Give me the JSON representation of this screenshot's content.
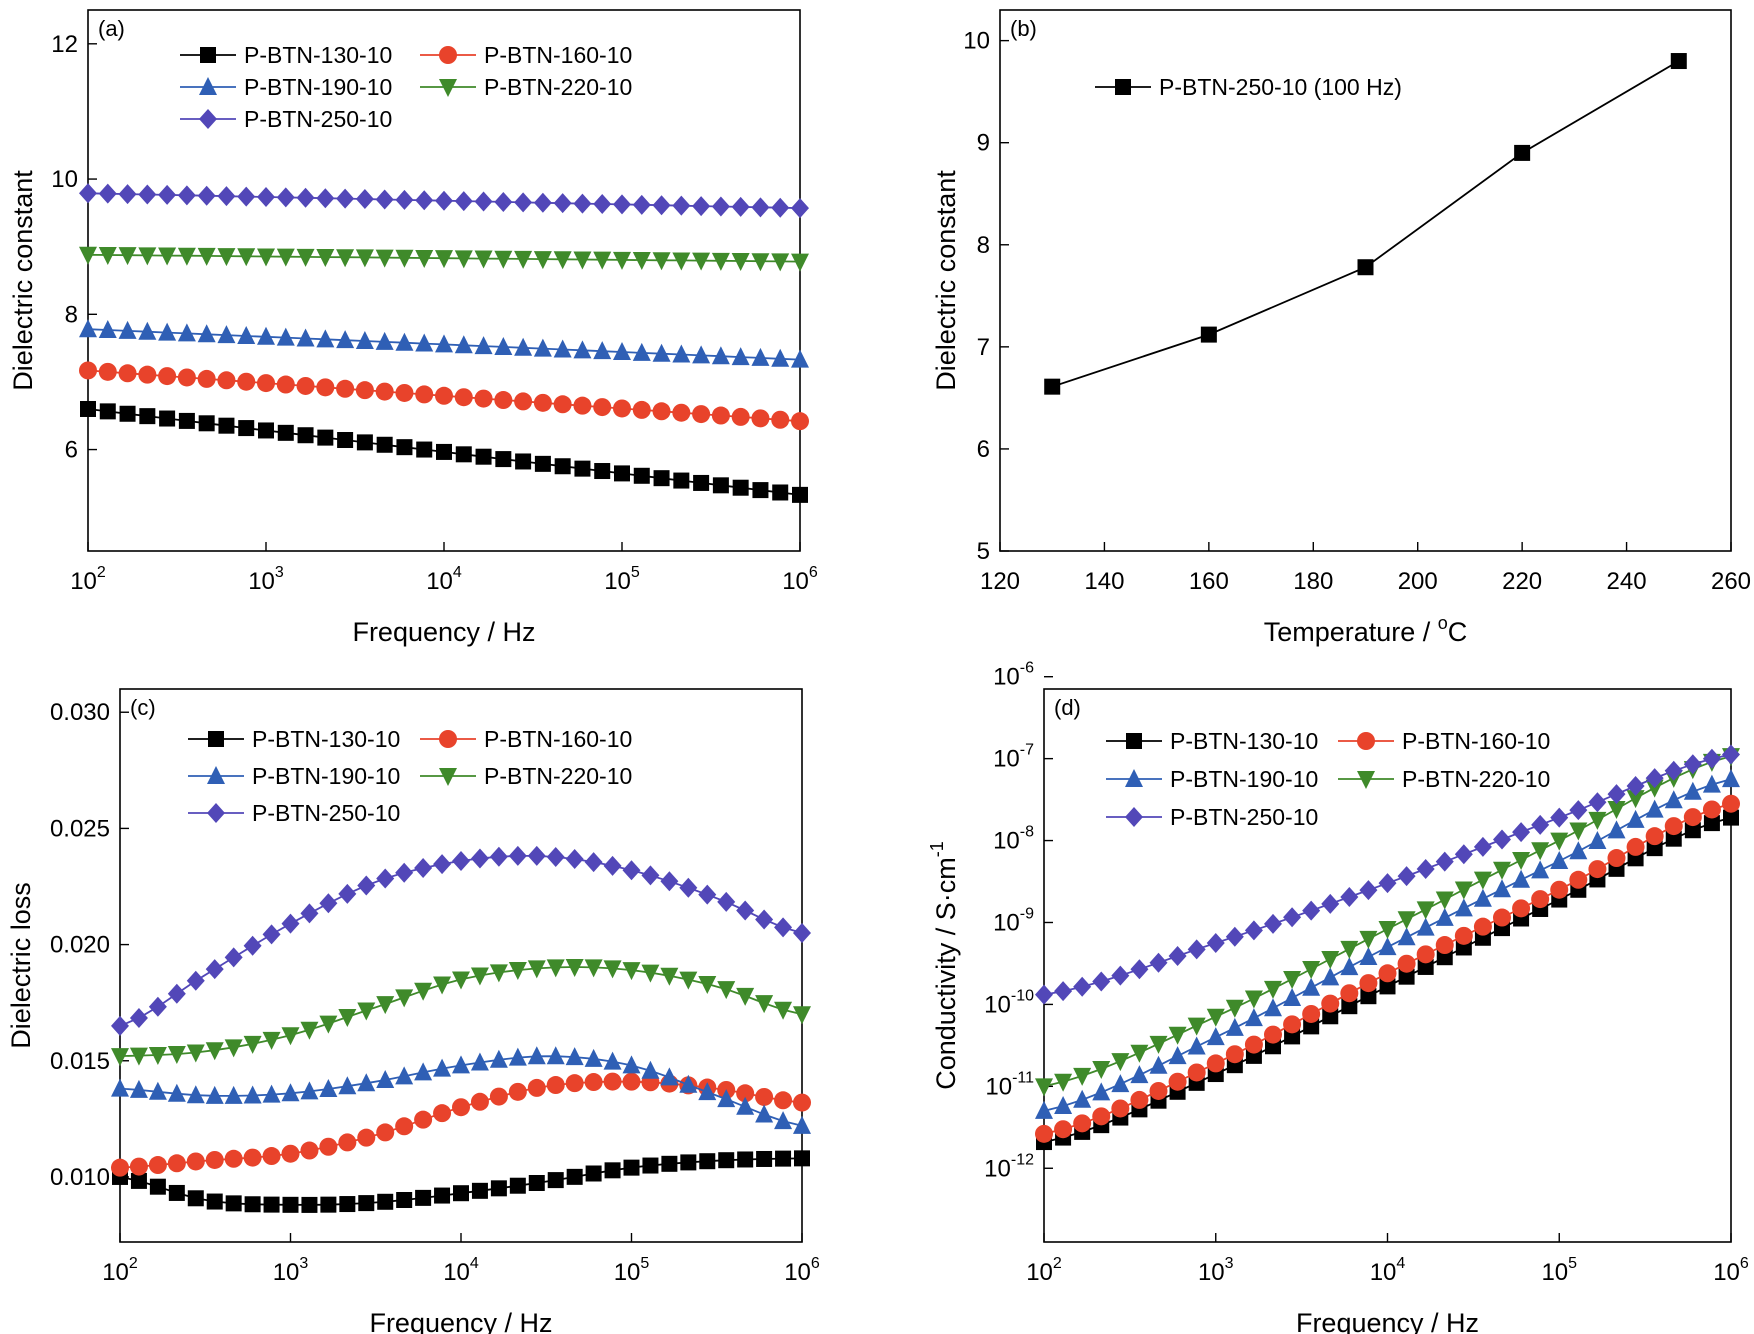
{
  "colors": {
    "black": "#000000",
    "red": "#e8432b",
    "blue": "#2f5fb5",
    "green": "#3f8a2a",
    "purple": "#5247b8"
  },
  "chart_data": [
    {
      "id": "a",
      "type": "line",
      "panel_label": "(a)",
      "xlabel": "Frequency / Hz",
      "ylabel": "Dielectric constant",
      "xscale": "log",
      "xlim": [
        100,
        1000000
      ],
      "ylim": [
        4.5,
        12.5
      ],
      "xticks": [
        {
          "base": "10",
          "exp": "2"
        },
        {
          "base": "10",
          "exp": "3"
        },
        {
          "base": "10",
          "exp": "4"
        },
        {
          "base": "10",
          "exp": "5"
        },
        {
          "base": "10",
          "exp": "6"
        }
      ],
      "yticks": [
        "6",
        "8",
        "10",
        "12"
      ],
      "legend_position": "top-left",
      "legend_columns": 2,
      "series": [
        {
          "name": "P-BTN-130-10",
          "color": "#000000",
          "marker": "square",
          "label_color": "#000000",
          "start": 6.6,
          "end": 5.33,
          "curve": "linear"
        },
        {
          "name": "P-BTN-160-10",
          "color": "#e8432b",
          "marker": "circle",
          "label_color": "#000000",
          "start": 7.17,
          "end": 6.42,
          "curve": "linear"
        },
        {
          "name": "P-BTN-190-10",
          "color": "#2f5fb5",
          "marker": "triangle-up",
          "label_color": "#000000",
          "start": 7.78,
          "end": 7.33,
          "curve": "linear"
        },
        {
          "name": "P-BTN-220-10",
          "color": "#3f8a2a",
          "marker": "triangle-down",
          "label_color": "#000000",
          "start": 8.88,
          "end": 8.78,
          "curve": "linear"
        },
        {
          "name": "P-BTN-250-10",
          "color": "#5247b8",
          "marker": "diamond",
          "label_color": "#000000",
          "start": 9.79,
          "end": 9.57,
          "curve": "linear"
        }
      ]
    },
    {
      "id": "b",
      "type": "line",
      "panel_label": "(b)",
      "xlabel": "Temperature / °C",
      "xlabel_parts": [
        "Temperature / ",
        "o",
        "C"
      ],
      "ylabel": "Dielectric constant",
      "xscale": "linear",
      "xlim": [
        120,
        260
      ],
      "ylim": [
        5,
        10.3
      ],
      "xticks": [
        "120",
        "140",
        "160",
        "180",
        "200",
        "220",
        "240",
        "260"
      ],
      "yticks": [
        "5",
        "6",
        "7",
        "8",
        "9",
        "10"
      ],
      "legend_position": "top-left",
      "series": [
        {
          "name": "P-BTN-250-10 (100 Hz)",
          "color": "#000000",
          "marker": "square",
          "x": [
            130,
            160,
            190,
            220,
            250
          ],
          "y": [
            6.61,
            7.12,
            7.78,
            8.9,
            9.8
          ]
        }
      ]
    },
    {
      "id": "c",
      "type": "line",
      "panel_label": "(c)",
      "xlabel": "Frequency / Hz",
      "ylabel": "Dielectric loss",
      "xscale": "log",
      "xlim": [
        100,
        1000000
      ],
      "ylim": [
        0.0072,
        0.031
      ],
      "xticks": [
        {
          "base": "10",
          "exp": "2"
        },
        {
          "base": "10",
          "exp": "3"
        },
        {
          "base": "10",
          "exp": "4"
        },
        {
          "base": "10",
          "exp": "5"
        },
        {
          "base": "10",
          "exp": "6"
        }
      ],
      "yticks": [
        "0.010",
        "0.015",
        "0.020",
        "0.025",
        "0.030"
      ],
      "legend_position": "top-left",
      "legend_columns": 2,
      "series": [
        {
          "name": "P-BTN-130-10",
          "color": "#000000",
          "marker": "square",
          "label_color": "#000000",
          "points": [
            [
              2,
              0.01
            ],
            [
              2.5,
              0.009
            ],
            [
              3,
              0.0088
            ],
            [
              3.5,
              0.0089
            ],
            [
              4,
              0.0093
            ],
            [
              4.5,
              0.0098
            ],
            [
              5,
              0.0104
            ],
            [
              5.5,
              0.0107
            ],
            [
              6,
              0.0108
            ]
          ]
        },
        {
          "name": "P-BTN-160-10",
          "color": "#e8432b",
          "marker": "circle",
          "label_color": "#e8432b",
          "points": [
            [
              2,
              0.0104
            ],
            [
              2.5,
              0.0107
            ],
            [
              3,
              0.011
            ],
            [
              3.5,
              0.0118
            ],
            [
              4,
              0.013
            ],
            [
              4.5,
              0.0139
            ],
            [
              5,
              0.0141
            ],
            [
              5.5,
              0.0138
            ],
            [
              6,
              0.0132
            ]
          ]
        },
        {
          "name": "P-BTN-190-10",
          "color": "#2f5fb5",
          "marker": "triangle-up",
          "label_color": "#2f5fb5",
          "points": [
            [
              2,
              0.0138
            ],
            [
              2.5,
              0.0135
            ],
            [
              3,
              0.0136
            ],
            [
              3.5,
              0.0141
            ],
            [
              4,
              0.0148
            ],
            [
              4.5,
              0.0152
            ],
            [
              5,
              0.0148
            ],
            [
              5.5,
              0.0135
            ],
            [
              6,
              0.0122
            ]
          ]
        },
        {
          "name": "P-BTN-220-10",
          "color": "#3f8a2a",
          "marker": "triangle-down",
          "label_color": "#3f8a2a",
          "points": [
            [
              2,
              0.0152
            ],
            [
              2.5,
              0.0154
            ],
            [
              3,
              0.0161
            ],
            [
              3.5,
              0.0173
            ],
            [
              4,
              0.0185
            ],
            [
              4.5,
              0.019
            ],
            [
              5,
              0.0189
            ],
            [
              5.5,
              0.0182
            ],
            [
              6,
              0.017
            ]
          ]
        },
        {
          "name": "P-BTN-250-10",
          "color": "#5247b8",
          "marker": "diamond",
          "label_color": "#5247b8",
          "points": [
            [
              2,
              0.0165
            ],
            [
              2.5,
              0.0187
            ],
            [
              3,
              0.0209
            ],
            [
              3.5,
              0.0227
            ],
            [
              4,
              0.0236
            ],
            [
              4.5,
              0.0238
            ],
            [
              5,
              0.0232
            ],
            [
              5.5,
              0.022
            ],
            [
              6,
              0.0205
            ]
          ]
        }
      ]
    },
    {
      "id": "d",
      "type": "line",
      "panel_label": "(d)",
      "xlabel": "Frequency / Hz",
      "ylabel_parts": [
        "Conductivity / S·cm",
        "-1"
      ],
      "ylabel": "Conductivity / S·cm-1",
      "xscale": "log",
      "yscale": "log",
      "xlim": [
        100,
        1000000
      ],
      "ylim_exp": [
        -12.9,
        -6.15
      ],
      "xticks": [
        {
          "base": "10",
          "exp": "2"
        },
        {
          "base": "10",
          "exp": "3"
        },
        {
          "base": "10",
          "exp": "4"
        },
        {
          "base": "10",
          "exp": "5"
        },
        {
          "base": "10",
          "exp": "6"
        }
      ],
      "yticks": [
        {
          "base": "10",
          "exp": "-12"
        },
        {
          "base": "10",
          "exp": "-11"
        },
        {
          "base": "10",
          "exp": "-10"
        },
        {
          "base": "10",
          "exp": "-9"
        },
        {
          "base": "10",
          "exp": "-8"
        },
        {
          "base": "10",
          "exp": "-7"
        },
        {
          "base": "10",
          "exp": "-6"
        }
      ],
      "legend_position": "top-left",
      "legend_columns": 2,
      "series": [
        {
          "name": "P-BTN-130-10",
          "color": "#000000",
          "marker": "square",
          "label_color": "#000000",
          "points": [
            [
              2,
              -11.68
            ],
            [
              3,
              -10.85
            ],
            [
              4,
              -9.78
            ],
            [
              5,
              -8.72
            ],
            [
              6,
              -7.72
            ]
          ]
        },
        {
          "name": "P-BTN-160-10",
          "color": "#e8432b",
          "marker": "circle",
          "label_color": "#e8432b",
          "points": [
            [
              2,
              -11.58
            ],
            [
              3,
              -10.72
            ],
            [
              4,
              -9.62
            ],
            [
              5,
              -8.6
            ],
            [
              6,
              -7.55
            ]
          ]
        },
        {
          "name": "P-BTN-190-10",
          "color": "#2f5fb5",
          "marker": "triangle-up",
          "label_color": "#2f5fb5",
          "points": [
            [
              2,
              -11.3
            ],
            [
              3,
              -10.4
            ],
            [
              4,
              -9.3
            ],
            [
              5,
              -8.25
            ],
            [
              6,
              -7.25
            ]
          ]
        },
        {
          "name": "P-BTN-220-10",
          "color": "#3f8a2a",
          "marker": "triangle-down",
          "label_color": "#3f8a2a",
          "points": [
            [
              2,
              -11.0
            ],
            [
              3,
              -10.15
            ],
            [
              4,
              -9.08
            ],
            [
              5,
              -8.0
            ],
            [
              6,
              -6.97
            ]
          ]
        },
        {
          "name": "P-BTN-250-10",
          "color": "#5247b8",
          "marker": "diamond",
          "label_color": "#5247b8",
          "points": [
            [
              2,
              -9.88
            ],
            [
              3,
              -9.25
            ],
            [
              4,
              -8.52
            ],
            [
              5,
              -7.72
            ],
            [
              6,
              -6.95
            ]
          ]
        }
      ]
    }
  ]
}
